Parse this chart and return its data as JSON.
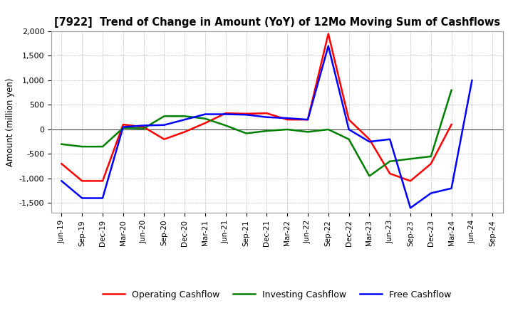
{
  "title": "[7922]  Trend of Change in Amount (YoY) of 12Mo Moving Sum of Cashflows",
  "ylabel": "Amount (million yen)",
  "x_labels": [
    "Jun-19",
    "Sep-19",
    "Dec-19",
    "Mar-20",
    "Jun-20",
    "Sep-20",
    "Dec-20",
    "Mar-21",
    "Jun-21",
    "Sep-21",
    "Dec-21",
    "Mar-22",
    "Jun-22",
    "Sep-22",
    "Dec-22",
    "Mar-23",
    "Jun-23",
    "Sep-23",
    "Dec-23",
    "Mar-24",
    "Jun-24",
    "Sep-24"
  ],
  "operating_cashflow": [
    -700,
    -1050,
    -1050,
    100,
    50,
    -200,
    -50,
    130,
    330,
    320,
    330,
    200,
    200,
    1950,
    200,
    -200,
    -900,
    -1050,
    -700,
    100,
    null,
    null
  ],
  "investing_cashflow": [
    -300,
    -350,
    -350,
    30,
    20,
    270,
    270,
    220,
    80,
    -80,
    -30,
    0,
    -50,
    0,
    -200,
    -950,
    -650,
    -600,
    -550,
    800,
    null,
    null
  ],
  "free_cashflow": [
    -1050,
    -1400,
    -1400,
    50,
    80,
    90,
    200,
    310,
    310,
    300,
    250,
    230,
    200,
    1700,
    0,
    -250,
    -200,
    -1600,
    -1300,
    -1200,
    1000,
    null
  ],
  "operating_color": "#ff0000",
  "investing_color": "#008000",
  "free_color": "#0000ff",
  "ylim": [
    -1700,
    2000
  ],
  "yticks": [
    -1500,
    -1000,
    -500,
    0,
    500,
    1000,
    1500,
    2000
  ],
  "background_color": "#ffffff",
  "grid_color": "#888888",
  "linewidth": 1.8
}
